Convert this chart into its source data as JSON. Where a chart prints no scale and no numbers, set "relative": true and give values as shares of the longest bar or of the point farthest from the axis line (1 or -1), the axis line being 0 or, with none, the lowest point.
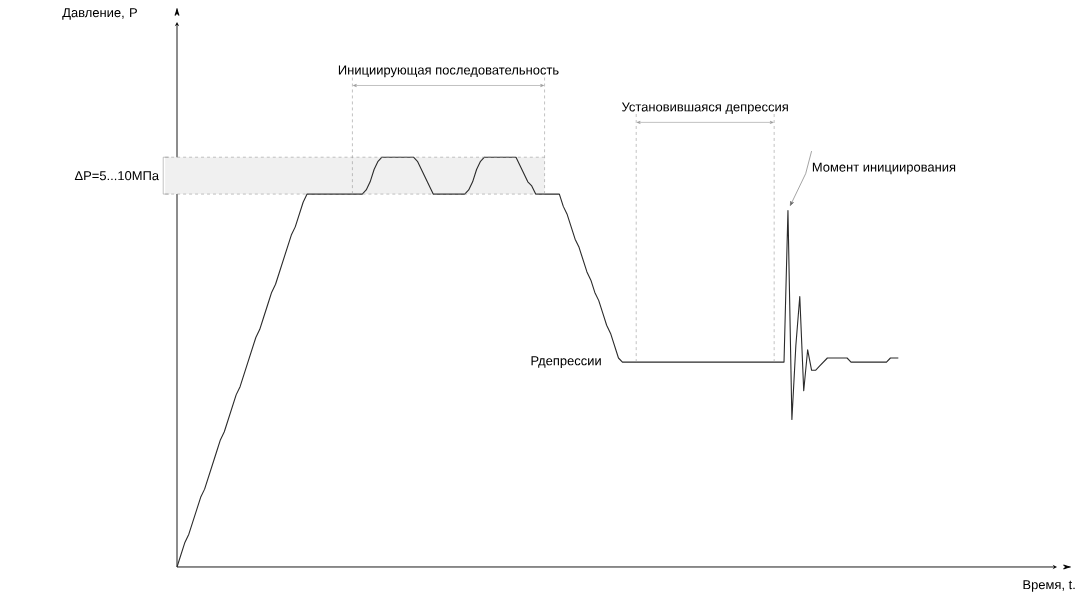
{
  "chart_data": {
    "type": "line",
    "relative": true,
    "color": "#2b2b2b",
    "categories": [
      null,
      null,
      null,
      null,
      null,
      null,
      null,
      null,
      null,
      null,
      null,
      null,
      null,
      null,
      null,
      null,
      null,
      null,
      null,
      null,
      null,
      null,
      null,
      null,
      null,
      null,
      null,
      null,
      null,
      null,
      null,
      null,
      null,
      null,
      null,
      null,
      null,
      null,
      null,
      null,
      null,
      null,
      null,
      null,
      null,
      null,
      null,
      null,
      null,
      null,
      null,
      null,
      null,
      null,
      null,
      null,
      null,
      null,
      null,
      null,
      null,
      null,
      null,
      null,
      null,
      null,
      null,
      null,
      null,
      null,
      null,
      null,
      null,
      null,
      null,
      null,
      null,
      null,
      null,
      null,
      null,
      null,
      null,
      null,
      null,
      null,
      null,
      null,
      null,
      null,
      null,
      null,
      null,
      null,
      null,
      null,
      null,
      null,
      null,
      null,
      null,
      null,
      null,
      null,
      null,
      null,
      null,
      null,
      null,
      null,
      null,
      null,
      null,
      null,
      null,
      null,
      null,
      null,
      null,
      null,
      null,
      null,
      null,
      null,
      null,
      null,
      null,
      null,
      null,
      null,
      null,
      null,
      null,
      null,
      null,
      null,
      null,
      null,
      null,
      null,
      null,
      null,
      null,
      null,
      null,
      null,
      null,
      null,
      null,
      null,
      null,
      null,
      null,
      null,
      null,
      null,
      null,
      null,
      null,
      null,
      null,
      null,
      null,
      null,
      null,
      null,
      null,
      null,
      null,
      null,
      null,
      null,
      null,
      null,
      null,
      null,
      null,
      null,
      null,
      null,
      null,
      null,
      null,
      null
    ],
    "values": [
      0,
      0.03,
      0.06,
      0.08,
      0.11,
      0.14,
      0.17,
      0.19,
      0.22,
      0.25,
      0.28,
      0.31,
      0.33,
      0.36,
      0.39,
      0.42,
      0.44,
      0.47,
      0.5,
      0.53,
      0.56,
      0.58,
      0.61,
      0.64,
      0.67,
      0.69,
      0.72,
      0.75,
      0.78,
      0.81,
      0.83,
      0.86,
      0.89,
      0.91,
      0.91,
      0.91,
      0.91,
      0.91,
      0.91,
      0.91,
      0.91,
      0.91,
      0.91,
      0.91,
      0.91,
      0.91,
      0.91,
      0.91,
      0.92,
      0.94,
      0.97,
      0.99,
      1,
      1,
      1,
      1,
      1,
      1,
      1,
      1,
      1,
      0.99,
      0.97,
      0.95,
      0.93,
      0.91,
      0.91,
      0.91,
      0.91,
      0.91,
      0.91,
      0.91,
      0.91,
      0.91,
      0.92,
      0.94,
      0.97,
      0.99,
      1,
      1,
      1,
      1,
      1,
      1,
      1,
      1,
      1,
      0.98,
      0.96,
      0.94,
      0.93,
      0.91,
      0.91,
      0.91,
      0.91,
      0.91,
      0.91,
      0.91,
      0.88,
      0.86,
      0.83,
      0.8,
      0.78,
      0.75,
      0.72,
      0.7,
      0.67,
      0.65,
      0.62,
      0.59,
      0.57,
      0.54,
      0.51,
      0.5,
      0.5,
      0.5,
      0.5,
      0.5,
      0.5,
      0.5,
      0.5,
      0.5,
      0.5,
      0.5,
      0.5,
      0.5,
      0.5,
      0.5,
      0.5,
      0.5,
      0.5,
      0.5,
      0.5,
      0.5,
      0.5,
      0.5,
      0.5,
      0.5,
      0.5,
      0.5,
      0.5,
      0.5,
      0.5,
      0.5,
      0.5,
      0.5,
      0.5,
      0.5,
      0.5,
      0.5,
      0.5,
      0.5,
      0.5,
      0.5,
      0.5,
      0.87,
      0.36,
      0.54,
      0.66,
      0.43,
      0.53,
      0.48,
      0.48,
      0.49,
      0.5,
      0.51,
      0.51,
      0.51,
      0.51,
      0.51,
      0.51,
      0.5,
      0.5,
      0.5,
      0.5,
      0.5,
      0.5,
      0.5,
      0.5,
      0.5,
      0.5,
      0.51,
      0.51,
      0.51
    ],
    "bands": [
      {
        "axis": "y",
        "from": 0.91,
        "to": 1,
        "label": "ΔP=5...10МПа",
        "color": "#f0f0f0"
      }
    ],
    "annotations": [
      "Инициирующая последовательность",
      "Установившаяся депрессия",
      "Рдепрессии",
      "Момент инициирования",
      "Давление, P",
      "Время, t."
    ]
  }
}
